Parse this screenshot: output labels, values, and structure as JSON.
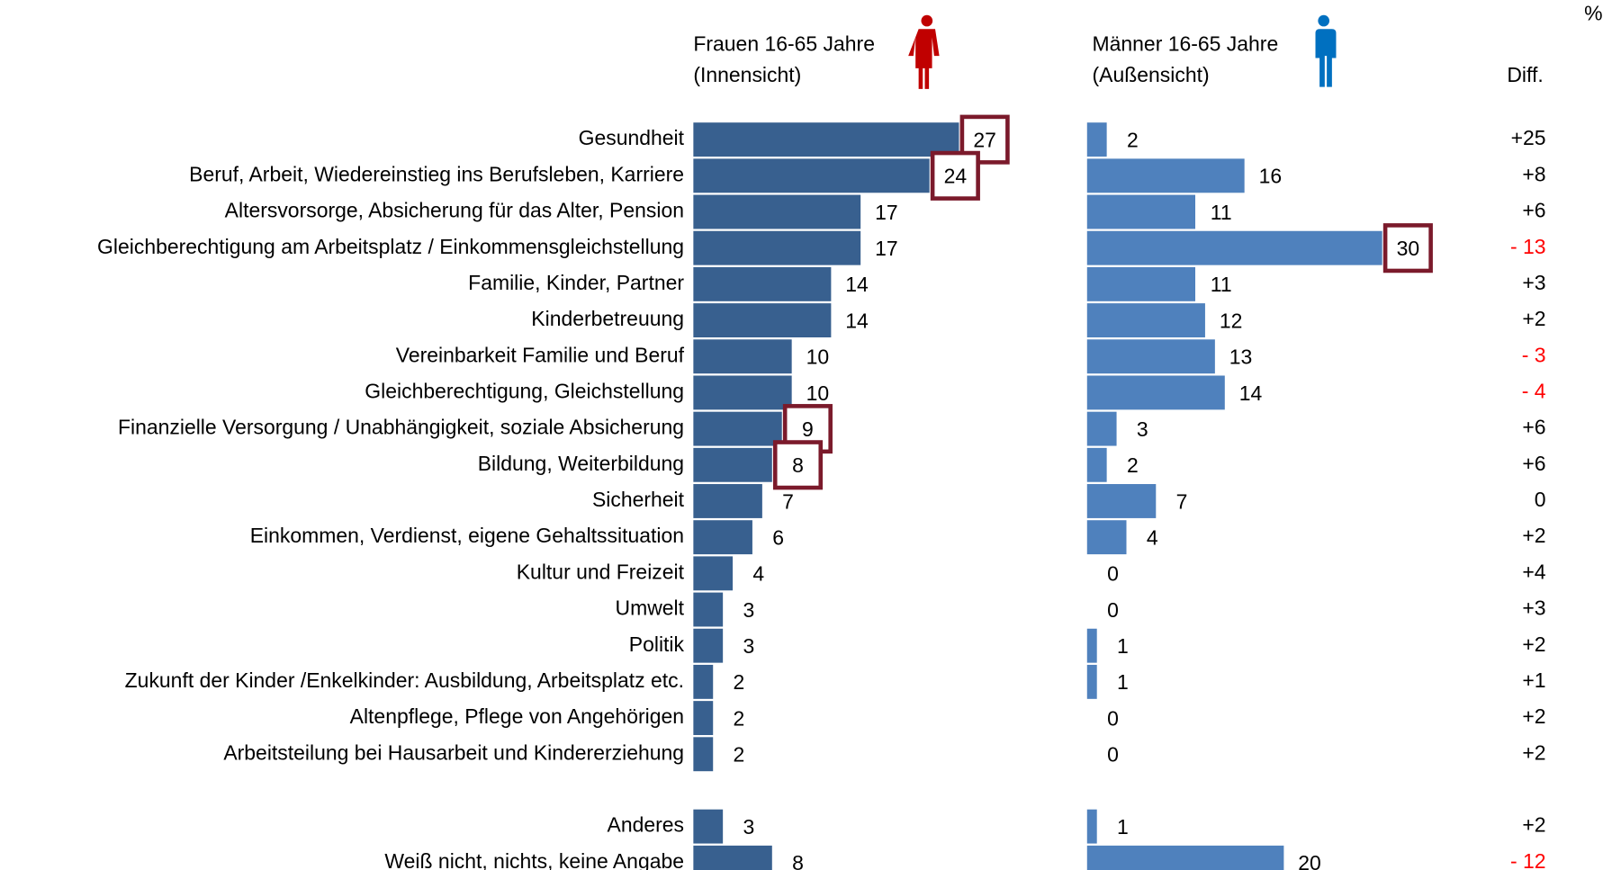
{
  "chart_data": {
    "type": "bar",
    "unit": "%",
    "categories": [
      "Gesundheit",
      "Beruf, Arbeit, Wiedereinstieg ins Berufsleben, Karriere",
      "Altersvorsorge, Absicherung für das Alter, Pension",
      "Gleichberechtigung am Arbeitsplatz / Einkommensgleichstellung",
      "Familie, Kinder, Partner",
      "Kinderbetreuung",
      "Vereinbarkeit Familie und Beruf",
      "Gleichberechtigung, Gleichstellung",
      "Finanzielle Versorgung / Unabhängigkeit, soziale Absicherung",
      "Bildung, Weiterbildung",
      "Sicherheit",
      "Einkommen, Verdienst, eigene Gehaltssituation",
      "Kultur und Freizeit",
      "Umwelt",
      "Politik",
      "Zukunft der Kinder /Enkelkinder: Ausbildung, Arbeitsplatz etc.",
      "Altenpflege, Pflege von Angehörigen",
      "Arbeitsteilung bei Hausarbeit und Kindererziehung",
      null,
      "Anderes",
      "Weiß nicht, nichts, keine Angabe"
    ],
    "series": [
      {
        "name": "Frauen 16-65 Jahre",
        "subtitle": "(Innensicht)",
        "color": "#38608f",
        "highlighted": [
          0,
          1,
          8,
          9
        ],
        "values": [
          27,
          24,
          17,
          17,
          14,
          14,
          10,
          10,
          9,
          8,
          7,
          6,
          4,
          3,
          3,
          2,
          2,
          2,
          null,
          3,
          8
        ]
      },
      {
        "name": "Männer 16-65 Jahre",
        "subtitle": "(Außensicht)",
        "color": "#4f81bd",
        "highlighted": [
          3
        ],
        "values": [
          2,
          16,
          11,
          30,
          11,
          12,
          13,
          14,
          3,
          2,
          7,
          4,
          0,
          0,
          1,
          1,
          0,
          0,
          null,
          1,
          20
        ]
      }
    ],
    "diff": {
      "title": "Diff.",
      "color": "#000000",
      "negative_color": "#ff0000",
      "values": [
        25,
        8,
        6,
        -13,
        3,
        2,
        -3,
        -4,
        6,
        6,
        0,
        2,
        4,
        3,
        2,
        1,
        2,
        2,
        null,
        2,
        -12
      ],
      "value_labels": [
        "+25",
        "+8",
        "+6",
        "- 13",
        "+3",
        "+2",
        "- 3",
        "- 4",
        "+6",
        "+6",
        "0",
        "+2",
        "+4",
        "+3",
        "+2",
        "+1",
        "+2",
        "+2",
        null,
        "+2",
        "- 12"
      ]
    },
    "highlight_color": "#7b1a2b"
  }
}
